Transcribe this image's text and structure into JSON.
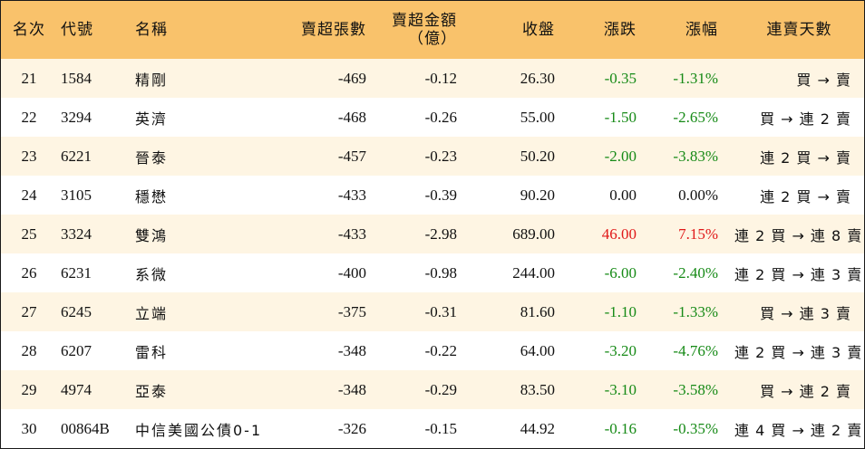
{
  "colors": {
    "header_bg": "#f9c26b",
    "row_alt_bg": "#fef5e3",
    "up": "#e01818",
    "down": "#168a16",
    "flat": "#111111"
  },
  "columns": {
    "rank": "名次",
    "code": "代號",
    "name": "名稱",
    "net_sell_shares": "賣超張數",
    "net_sell_amount_line1": "賣超金額",
    "net_sell_amount_line2": "（億）",
    "close": "收盤",
    "change": "漲跌",
    "pct_change": "漲幅",
    "streak": "連賣天數"
  },
  "rows": [
    {
      "rank": "21",
      "code": "1584",
      "name": "精剛",
      "shares": "-469",
      "amount": "-0.12",
      "close": "26.30",
      "change": "-0.35",
      "pct": "-1.31%",
      "trend": "down",
      "streak": "買 → 賣"
    },
    {
      "rank": "22",
      "code": "3294",
      "name": "英濟",
      "shares": "-468",
      "amount": "-0.26",
      "close": "55.00",
      "change": "-1.50",
      "pct": "-2.65%",
      "trend": "down",
      "streak": "買 → 連 2 賣"
    },
    {
      "rank": "23",
      "code": "6221",
      "name": "晉泰",
      "shares": "-457",
      "amount": "-0.23",
      "close": "50.20",
      "change": "-2.00",
      "pct": "-3.83%",
      "trend": "down",
      "streak": "連 2 買 → 賣"
    },
    {
      "rank": "24",
      "code": "3105",
      "name": "穩懋",
      "shares": "-433",
      "amount": "-0.39",
      "close": "90.20",
      "change": "0.00",
      "pct": "0.00%",
      "trend": "flat",
      "streak": "連 2 買 → 賣"
    },
    {
      "rank": "25",
      "code": "3324",
      "name": "雙鴻",
      "shares": "-433",
      "amount": "-2.98",
      "close": "689.00",
      "change": "46.00",
      "pct": "7.15%",
      "trend": "up",
      "streak": "連 2 買 → 連 8 賣"
    },
    {
      "rank": "26",
      "code": "6231",
      "name": "系微",
      "shares": "-400",
      "amount": "-0.98",
      "close": "244.00",
      "change": "-6.00",
      "pct": "-2.40%",
      "trend": "down",
      "streak": "連 2 買 → 連 3 賣"
    },
    {
      "rank": "27",
      "code": "6245",
      "name": "立端",
      "shares": "-375",
      "amount": "-0.31",
      "close": "81.60",
      "change": "-1.10",
      "pct": "-1.33%",
      "trend": "down",
      "streak": "買 → 連 3 賣"
    },
    {
      "rank": "28",
      "code": "6207",
      "name": "雷科",
      "shares": "-348",
      "amount": "-0.22",
      "close": "64.00",
      "change": "-3.20",
      "pct": "-4.76%",
      "trend": "down",
      "streak": "連 2 買 → 連 3 賣"
    },
    {
      "rank": "29",
      "code": "4974",
      "name": "亞泰",
      "shares": "-348",
      "amount": "-0.29",
      "close": "83.50",
      "change": "-3.10",
      "pct": "-3.58%",
      "trend": "down",
      "streak": "買 → 連 2 賣"
    },
    {
      "rank": "30",
      "code": "00864B",
      "name": "中信美國公債0-1",
      "shares": "-326",
      "amount": "-0.15",
      "close": "44.92",
      "change": "-0.16",
      "pct": "-0.35%",
      "trend": "down",
      "streak": "連 4 買 → 連 2 賣"
    }
  ]
}
